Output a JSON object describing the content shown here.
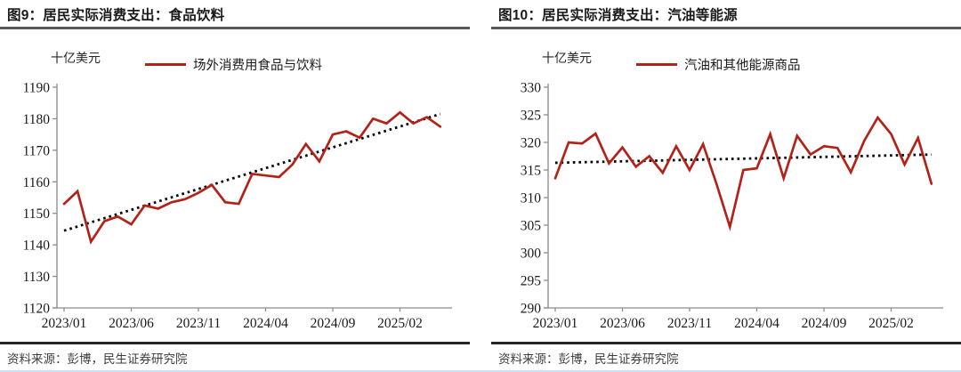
{
  "colors": {
    "series_red": "#b32219",
    "trend_black": "#000000",
    "axis_gray": "#8c8c8c",
    "tick_label": "#1a1a1a",
    "title_rule": "#595959",
    "source_rule": "#262626",
    "bottom_strip": "#cfe0ef"
  },
  "panels": [
    {
      "title": "图9：居民实际消费支出：食品饮料",
      "unit": "十亿美元",
      "legend": "场外消费用食品与饮料",
      "source": "资料来源：彭博，民生证券研究院"
    },
    {
      "title": "图10：居民实际消费支出：汽油等能源",
      "unit": "十亿美元",
      "legend": "汽油和其他能源商品",
      "source": "资料来源：彭博，民生证券研究院"
    }
  ],
  "chart_data": [
    {
      "type": "line",
      "title": "图9：居民实际消费支出：食品饮料",
      "ylabel": "十亿美元",
      "series_name": "场外消费用食品与饮料",
      "x": [
        "2023/01",
        "2023/02",
        "2023/03",
        "2023/04",
        "2023/05",
        "2023/06",
        "2023/07",
        "2023/08",
        "2023/09",
        "2023/10",
        "2023/11",
        "2023/12",
        "2024/01",
        "2024/02",
        "2024/03",
        "2024/04",
        "2024/05",
        "2024/06",
        "2024/07",
        "2024/08",
        "2024/09",
        "2024/10",
        "2024/11",
        "2024/12",
        "2025/01",
        "2025/02",
        "2025/03",
        "2025/04",
        "2025/05"
      ],
      "values": [
        1153,
        1157,
        1141,
        1147.5,
        1149,
        1146.5,
        1152.5,
        1151.5,
        1153.5,
        1154.5,
        1156.5,
        1159,
        1153.5,
        1153,
        1162.5,
        1162,
        1161.5,
        1165.5,
        1172,
        1166.5,
        1175,
        1176,
        1174,
        1180,
        1178.5,
        1182,
        1178.5,
        1180.5,
        1177.5
      ],
      "trend_line": {
        "style": "dotted",
        "start": 1144.5,
        "end": 1181.5
      },
      "ylim": [
        1120,
        1190
      ],
      "ytick_step": 10,
      "xtick_labels": [
        "2023/01",
        "2023/06",
        "2023/11",
        "2024/04",
        "2024/09",
        "2025/02"
      ],
      "xtick_indices": [
        0,
        5,
        10,
        15,
        20,
        25
      ],
      "grid": false,
      "legend_position": "top"
    },
    {
      "type": "line",
      "title": "图10：居民实际消费支出：汽油等能源",
      "ylabel": "十亿美元",
      "series_name": "汽油和其他能源商品",
      "x": [
        "2023/01",
        "2023/02",
        "2023/03",
        "2023/04",
        "2023/05",
        "2023/06",
        "2023/07",
        "2023/08",
        "2023/09",
        "2023/10",
        "2023/11",
        "2023/12",
        "2024/01",
        "2024/02",
        "2024/03",
        "2024/04",
        "2024/05",
        "2024/06",
        "2024/07",
        "2024/08",
        "2024/09",
        "2024/10",
        "2024/11",
        "2024/12",
        "2025/01",
        "2025/02",
        "2025/03",
        "2025/04",
        "2025/05"
      ],
      "values": [
        313.5,
        320,
        319.8,
        321.6,
        316.2,
        319.1,
        315.6,
        317.5,
        314.5,
        319.3,
        315,
        319.7,
        312.5,
        304.7,
        315,
        315.3,
        321.5,
        313.5,
        321.2,
        317.8,
        319.3,
        319,
        314.6,
        320.3,
        324.5,
        321.5,
        316,
        320.8,
        312.5
      ],
      "trend_line": {
        "style": "dotted",
        "start": 316.3,
        "end": 317.8
      },
      "ylim": [
        290,
        330
      ],
      "ytick_step": 5,
      "xtick_labels": [
        "2023/01",
        "2023/06",
        "2023/11",
        "2024/04",
        "2024/09",
        "2025/02"
      ],
      "xtick_indices": [
        0,
        5,
        10,
        15,
        20,
        25
      ],
      "grid": false,
      "legend_position": "top"
    }
  ]
}
